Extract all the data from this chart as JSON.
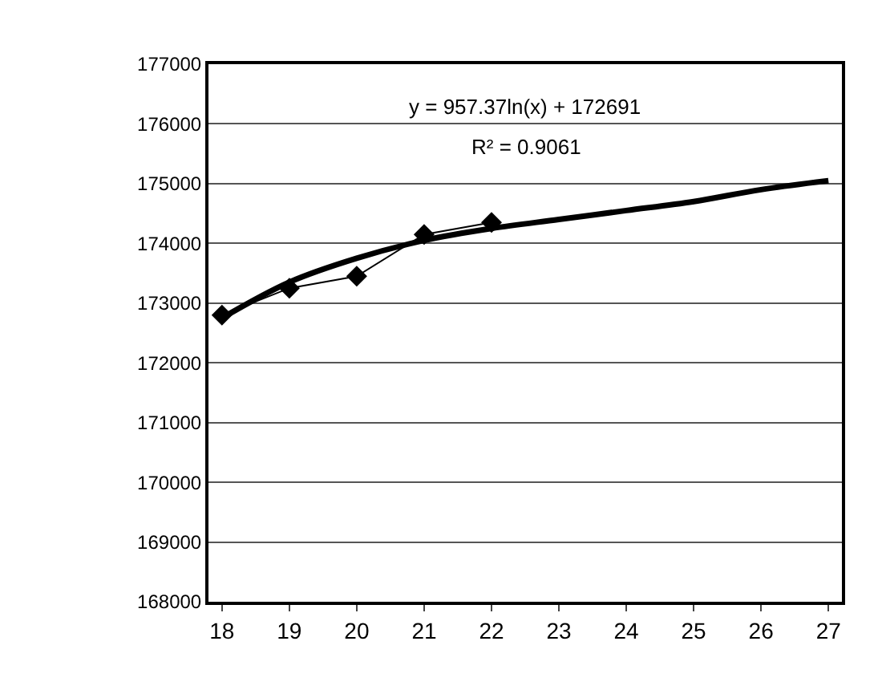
{
  "chart_data": {
    "type": "line",
    "categories": [
      "18",
      "19",
      "20",
      "21",
      "22",
      "23",
      "24",
      "25",
      "26",
      "27"
    ],
    "series": [
      {
        "color": "#000000",
        "marker": "diamond",
        "values": [
          172800,
          173250,
          173450,
          174150,
          174350,
          null,
          null,
          null,
          null,
          null
        ]
      },
      {
        "color": "#000000",
        "marker": "none",
        "values": [
          172750,
          173350,
          173750,
          174050,
          174250,
          174400,
          174550,
          174700,
          174900,
          175050
        ]
      }
    ],
    "ylim": [
      168000,
      177000
    ],
    "yticks": [
      168000,
      169000,
      170000,
      171000,
      172000,
      173000,
      174000,
      175000,
      176000,
      177000
    ],
    "grid": "y",
    "annotations": [
      "y = 957.37ln(x) + 172691",
      "R² = 0.9061"
    ]
  }
}
